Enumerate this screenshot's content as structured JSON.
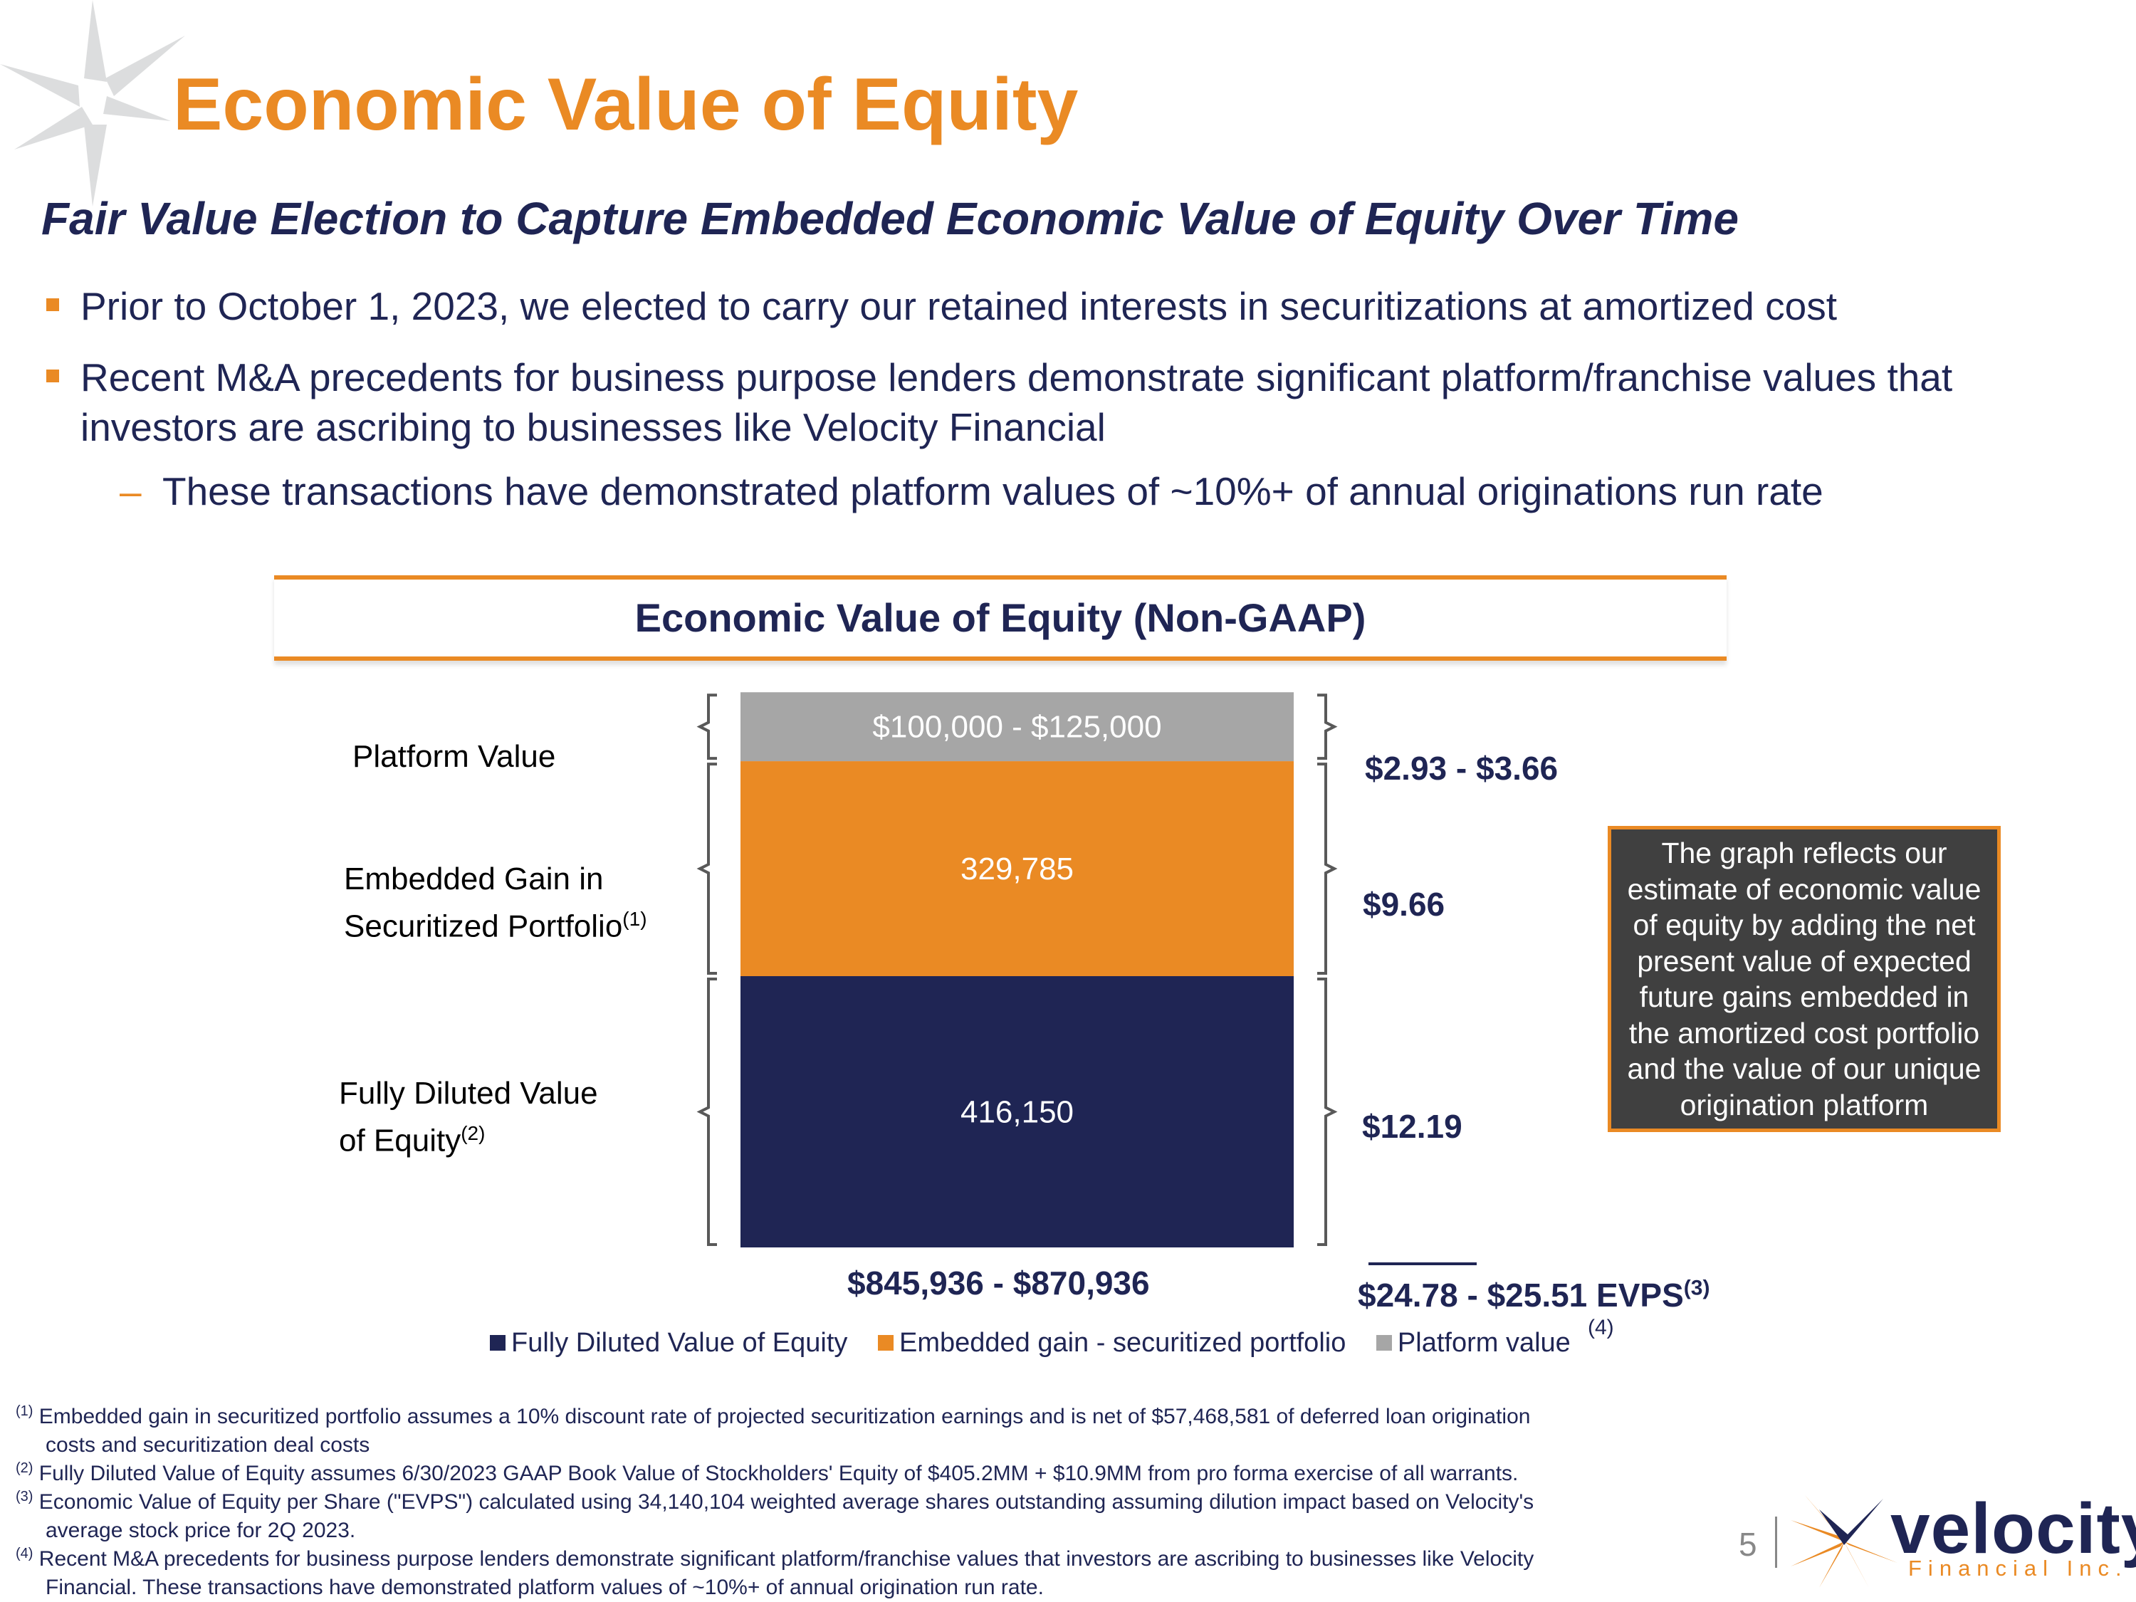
{
  "title": "Economic Value of Equity",
  "subtitle": "Fair Value Election to Capture Embedded Economic Value of Equity Over Time",
  "bullets": [
    "Prior to October 1, 2023, we elected to carry our retained interests in securitizations at amortized cost",
    "Recent M&A precedents for business purpose lenders demonstrate significant platform/franchise values that investors are ascribing to businesses like Velocity Financial"
  ],
  "sub_bullet": "These transactions have demonstrated platform values of ~10%+ of annual originations run rate",
  "sub_bullet_mark": "–",
  "colors": {
    "navy": "#1f2554",
    "orange": "#ea8a24",
    "gray": "#a6a6a6",
    "dark": "#404040"
  },
  "chart_data": {
    "type": "bar",
    "stacked": true,
    "title": "Economic Value of Equity (Non-GAAP)",
    "series": [
      {
        "name": "Fully Diluted Value of Equity",
        "value": 416150,
        "label": "416,150",
        "color": "#1f2554",
        "row_label": "Fully Diluted Value",
        "row_label2": "of Equity",
        "row_sup": "(2)",
        "per_share": "$12.19"
      },
      {
        "name": "Embedded gain - securitized portfolio",
        "value": 329785,
        "label": "329,785",
        "color": "#ea8a24",
        "row_label": "Embedded Gain in",
        "row_label2": "Securitized Portfolio",
        "row_sup": "(1)",
        "per_share": "$9.66"
      },
      {
        "name": "Platform value",
        "value_range": [
          100000,
          125000
        ],
        "label": "$100,000 - $125,000",
        "color": "#a6a6a6",
        "row_label": "Platform Value",
        "per_share": "$2.93 - $3.66"
      }
    ],
    "total_label": "$845,936 - $870,936",
    "evps_label": "$24.78 - $25.51 EVPS",
    "evps_sup": "(3)",
    "evps_note": "(4)",
    "legend_position": "bottom"
  },
  "callout": "The graph reflects our estimate of economic value of equity by adding the net present value of expected future gains embedded in the amortized cost portfolio and the value of our unique origination platform",
  "footnotes": [
    {
      "mark": "(1)",
      "text": "Embedded gain in securitized portfolio assumes a 10% discount rate of projected securitization earnings and is net of $57,468,581 of deferred loan origination",
      "cont": "costs and securitization deal costs"
    },
    {
      "mark": "(2)",
      "text": "Fully Diluted Value of Equity assumes 6/30/2023 GAAP Book Value of Stockholders' Equity of $405.2MM + $10.9MM from pro forma exercise of all warrants.",
      "cont": ""
    },
    {
      "mark": "(3)",
      "text": "Economic Value of Equity per Share (\"EVPS\") calculated using 34,140,104 weighted average shares outstanding assuming dilution impact based on Velocity's",
      "cont": "average stock price for 2Q 2023."
    },
    {
      "mark": "(4)",
      "text": "Recent M&A precedents for business purpose lenders demonstrate significant platform/franchise values that investors are ascribing to businesses like Velocity",
      "cont": "Financial. These transactions have demonstrated platform values of ~10%+ of annual origination run rate."
    }
  ],
  "page_number": "5",
  "logo": {
    "name": "velocity",
    "sub": "Financial Inc."
  }
}
